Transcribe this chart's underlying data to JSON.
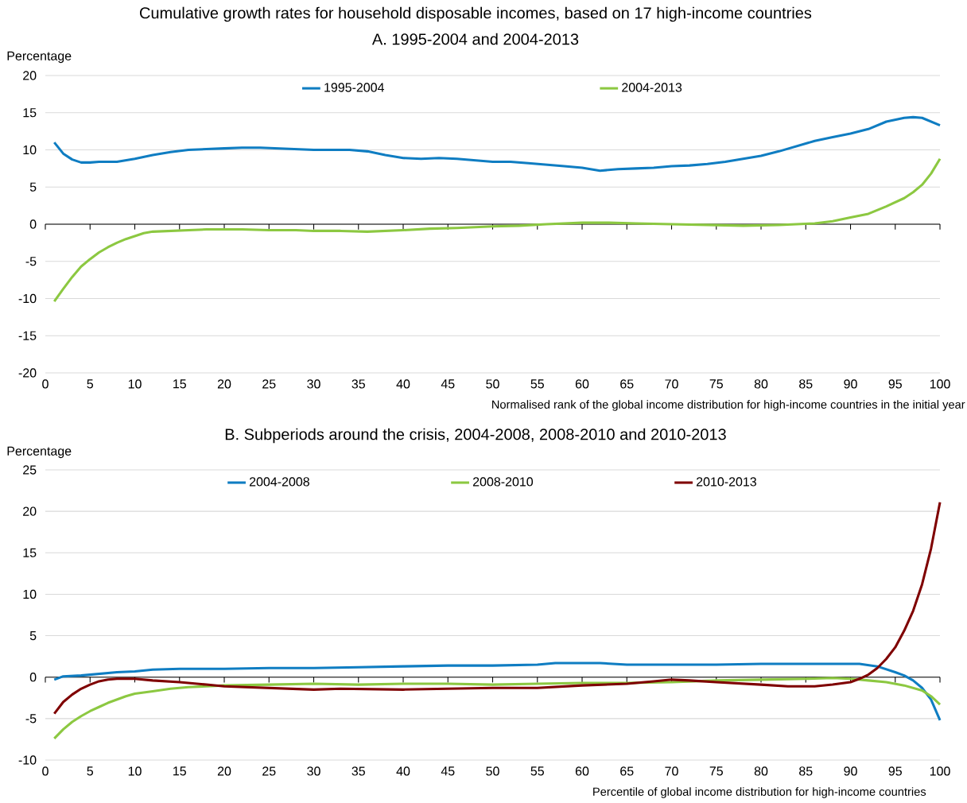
{
  "chart_data": [
    {
      "type": "line",
      "title": "Cumulative growth rates for household disposable incomes, based on 17 high-income countries",
      "subtitle": "A. 1995-2004 and 2004-2013",
      "ylabel": "Percentage",
      "xlabel": "Normalised rank of the global income distribution for high-income countries in the initial year",
      "xlim": [
        0,
        100
      ],
      "ylim": [
        -20,
        20
      ],
      "xticks": [
        0,
        5,
        10,
        15,
        20,
        25,
        30,
        35,
        40,
        45,
        50,
        55,
        60,
        65,
        70,
        75,
        80,
        85,
        90,
        95,
        100
      ],
      "yticks": [
        -20,
        -15,
        -10,
        -5,
        0,
        5,
        10,
        15,
        20
      ],
      "grid": "y",
      "legend": "top",
      "series": [
        {
          "name": "1995-2004",
          "color": "#0f7dc2",
          "x": [
            1,
            2,
            3,
            4,
            5,
            6,
            8,
            10,
            12,
            14,
            16,
            18,
            20,
            22,
            24,
            26,
            28,
            30,
            32,
            34,
            36,
            38,
            40,
            42,
            44,
            46,
            48,
            50,
            52,
            54,
            56,
            58,
            60,
            62,
            64,
            66,
            68,
            70,
            72,
            74,
            76,
            78,
            80,
            82,
            84,
            86,
            88,
            90,
            92,
            94,
            96,
            97,
            98,
            100
          ],
          "values": [
            11.0,
            9.5,
            8.7,
            8.3,
            8.3,
            8.4,
            8.4,
            8.8,
            9.3,
            9.7,
            10.0,
            10.1,
            10.2,
            10.3,
            10.3,
            10.2,
            10.1,
            10.0,
            10.0,
            10.0,
            9.8,
            9.3,
            8.9,
            8.8,
            8.9,
            8.8,
            8.6,
            8.4,
            8.4,
            8.2,
            8.0,
            7.8,
            7.6,
            7.2,
            7.4,
            7.5,
            7.6,
            7.8,
            7.9,
            8.1,
            8.4,
            8.8,
            9.2,
            9.8,
            10.5,
            11.2,
            11.7,
            12.2,
            12.8,
            13.8,
            14.3,
            14.4,
            14.3,
            13.3
          ]
        },
        {
          "name": "2004-2013",
          "color": "#8cc841",
          "x": [
            1,
            2,
            3,
            4,
            5,
            6,
            7,
            8,
            9,
            10,
            11,
            12,
            14,
            16,
            18,
            20,
            22,
            25,
            28,
            30,
            33,
            36,
            40,
            43,
            46,
            50,
            53,
            56,
            60,
            63,
            66,
            70,
            74,
            78,
            82,
            86,
            88,
            90,
            92,
            94,
            96,
            97,
            98,
            99,
            100
          ],
          "values": [
            -10.4,
            -8.7,
            -7.1,
            -5.7,
            -4.7,
            -3.8,
            -3.1,
            -2.5,
            -2.0,
            -1.6,
            -1.2,
            -1.0,
            -0.9,
            -0.8,
            -0.7,
            -0.7,
            -0.7,
            -0.8,
            -0.8,
            -0.9,
            -0.9,
            -1.0,
            -0.8,
            -0.6,
            -0.5,
            -0.3,
            -0.2,
            0.0,
            0.2,
            0.2,
            0.1,
            0.0,
            -0.1,
            -0.2,
            -0.1,
            0.1,
            0.4,
            0.9,
            1.4,
            2.4,
            3.5,
            4.3,
            5.3,
            6.8,
            8.8
          ]
        }
      ]
    },
    {
      "type": "line",
      "title": "B. Subperiods around the crisis, 2004-2008, 2008-2010 and 2010-2013",
      "ylabel": "Percentage",
      "xlabel": "Percentile of global income distribution for high-income countries",
      "xlim": [
        0,
        100
      ],
      "ylim": [
        -10,
        25
      ],
      "xticks": [
        0,
        5,
        10,
        15,
        20,
        25,
        30,
        35,
        40,
        45,
        50,
        55,
        60,
        65,
        70,
        75,
        80,
        85,
        90,
        95,
        100
      ],
      "yticks": [
        -10,
        -5,
        0,
        5,
        10,
        15,
        20,
        25
      ],
      "grid": "y",
      "legend": "top",
      "series": [
        {
          "name": "2004-2008",
          "color": "#0f7dc2",
          "x": [
            1,
            2,
            4,
            6,
            8,
            10,
            12,
            15,
            20,
            25,
            30,
            35,
            40,
            45,
            50,
            55,
            57,
            60,
            62,
            65,
            70,
            75,
            80,
            85,
            90,
            91,
            93,
            95,
            96,
            97,
            98,
            99,
            100
          ],
          "values": [
            -0.3,
            0.1,
            0.2,
            0.4,
            0.6,
            0.7,
            0.9,
            1.0,
            1.0,
            1.1,
            1.1,
            1.2,
            1.3,
            1.4,
            1.4,
            1.5,
            1.7,
            1.7,
            1.7,
            1.5,
            1.5,
            1.5,
            1.6,
            1.6,
            1.6,
            1.6,
            1.3,
            0.6,
            0.2,
            -0.4,
            -1.3,
            -2.7,
            -5.2
          ]
        },
        {
          "name": "2008-2010",
          "color": "#8cc841",
          "x": [
            1,
            2,
            3,
            4,
            5,
            6,
            7,
            8,
            9,
            10,
            12,
            14,
            16,
            18,
            20,
            25,
            30,
            35,
            40,
            45,
            50,
            55,
            60,
            65,
            70,
            75,
            80,
            85,
            88,
            90,
            92,
            94,
            96,
            98,
            99,
            100
          ],
          "values": [
            -7.4,
            -6.3,
            -5.4,
            -4.7,
            -4.1,
            -3.6,
            -3.1,
            -2.7,
            -2.3,
            -2.0,
            -1.7,
            -1.4,
            -1.2,
            -1.1,
            -1.0,
            -0.9,
            -0.8,
            -0.9,
            -0.8,
            -0.8,
            -0.9,
            -0.8,
            -0.7,
            -0.7,
            -0.6,
            -0.4,
            -0.3,
            -0.2,
            -0.1,
            -0.2,
            -0.4,
            -0.6,
            -1.0,
            -1.6,
            -2.3,
            -3.3
          ]
        },
        {
          "name": "2010-2013",
          "color": "#7f0000",
          "x": [
            1,
            2,
            3,
            4,
            5,
            6,
            7,
            8,
            10,
            12,
            15,
            18,
            20,
            25,
            30,
            33,
            40,
            45,
            50,
            55,
            60,
            65,
            68,
            70,
            72,
            75,
            80,
            83,
            86,
            88,
            90,
            91,
            92,
            93,
            94,
            95,
            96,
            97,
            98,
            99,
            100
          ],
          "values": [
            -4.4,
            -3.0,
            -2.1,
            -1.4,
            -0.9,
            -0.5,
            -0.3,
            -0.2,
            -0.2,
            -0.4,
            -0.6,
            -0.9,
            -1.1,
            -1.3,
            -1.5,
            -1.4,
            -1.5,
            -1.4,
            -1.3,
            -1.3,
            -1.0,
            -0.8,
            -0.5,
            -0.3,
            -0.4,
            -0.6,
            -0.9,
            -1.1,
            -1.1,
            -0.9,
            -0.6,
            -0.2,
            0.3,
            1.1,
            2.2,
            3.6,
            5.6,
            8.0,
            11.2,
            15.5,
            21.1
          ]
        }
      ]
    }
  ]
}
